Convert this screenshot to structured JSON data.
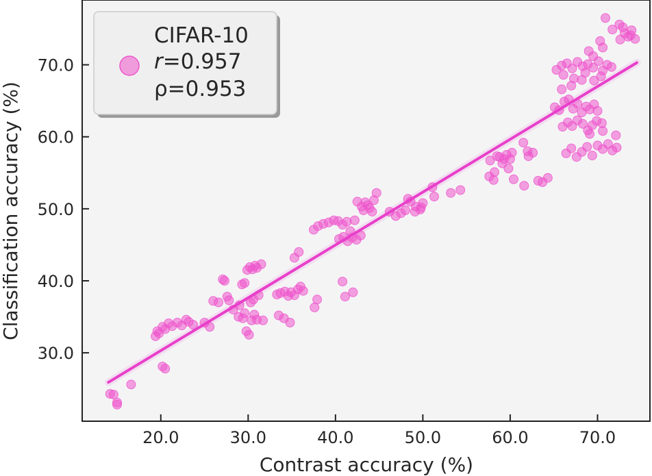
{
  "chart_data": {
    "type": "scatter",
    "xlabel": "Contrast accuracy (%)",
    "ylabel": "Classification accuracy (%)",
    "xlim": [
      11.0,
      76.0
    ],
    "ylim": [
      20.5,
      79.0
    ],
    "xticks": [
      20,
      30,
      40,
      50,
      60,
      70
    ],
    "yticks": [
      30,
      40,
      50,
      60,
      70
    ],
    "xtick_labels": [
      "20.0",
      "30.0",
      "40.0",
      "50.0",
      "60.0",
      "70.0"
    ],
    "ytick_labels": [
      "30.0",
      "40.0",
      "50.0",
      "60.0",
      "70.0"
    ],
    "grid": false,
    "legend_position": "top-left",
    "point_color": "#ee55cc",
    "fit_line_color": "#e83fca",
    "fit_line": {
      "x": [
        14.0,
        74.5
      ],
      "y": [
        25.9,
        70.3
      ]
    },
    "legend": {
      "title": "CIFAR-10",
      "r_symbol": "r",
      "r_value": "=0.957",
      "rho_text": "ρ=0.953"
    },
    "series": [
      {
        "x": [
          14.2,
          14.6,
          15.0,
          15.0,
          16.6,
          19.4,
          19.6,
          19.8,
          20.2,
          20.5,
          20.9,
          21.3,
          21.9,
          22.4,
          22.9,
          23.2,
          23.7,
          25.0,
          25.6,
          20.2,
          20.5,
          26.0,
          26.6,
          27.1,
          27.3,
          27.6,
          27.8,
          28.3,
          28.9,
          29.3,
          29.6,
          29.9,
          30.2,
          30.5,
          30.8,
          31.0,
          31.5,
          29.4,
          29.8,
          30.1,
          30.4,
          30.7,
          31.0,
          31.7,
          29.0,
          31.2,
          29.6,
          30.3,
          30.6,
          33.3,
          33.7,
          34.2,
          34.6,
          34.9,
          35.3,
          35.7,
          36.0,
          36.3,
          33.5,
          34.1,
          34.8,
          35.3,
          35.8,
          37.6,
          37.9,
          37.5,
          38.0,
          38.6,
          39.2,
          39.8,
          40.3,
          40.8,
          41.3,
          41.7,
          42.2,
          40.4,
          40.9,
          41.4,
          41.9,
          42.4,
          42.9,
          40.8,
          41.1,
          42.0,
          42.5,
          43.0,
          43.4,
          43.9,
          44.4,
          44.7,
          43.2,
          43.7,
          44.2,
          46.2,
          46.9,
          47.5,
          48.0,
          48.6,
          49.2,
          49.7,
          50.0,
          48.3,
          49.1,
          49.8,
          51.3,
          51.1,
          53.2,
          54.3,
          57.7,
          58.2,
          58.8,
          59.3,
          59.8,
          60.2,
          58.5,
          59.1,
          59.6,
          60.4,
          61.6,
          62.1,
          62.6,
          57.6,
          58.1,
          60.0,
          61.5,
          63.2,
          63.7,
          64.3,
          62.0,
          65.1,
          65.6,
          66.2,
          66.7,
          67.2,
          67.7,
          68.2,
          68.7,
          69.1,
          69.6,
          70.0,
          66.0,
          66.6,
          67.1,
          67.7,
          68.3,
          68.9,
          69.4,
          69.9,
          70.5,
          65.3,
          65.9,
          66.5,
          67.1,
          67.7,
          68.3,
          68.9,
          69.5,
          70.1,
          70.6,
          71.1,
          71.6,
          66.1,
          67.3,
          68.6,
          69.6,
          70.4,
          66.4,
          67.0,
          67.6,
          68.2,
          68.8,
          69.4,
          70.0,
          70.6,
          71.2,
          71.7,
          72.2,
          69.1,
          70.6,
          72.1,
          72.6,
          73.1,
          73.5,
          73.9,
          74.3,
          72.9,
          73.8,
          69.0,
          70.3,
          71.7,
          70.9,
          72.5,
          65.9,
          67.0,
          68.2,
          69.5,
          70.6
        ],
        "y": [
          24.3,
          24.2,
          23.1,
          22.8,
          25.6,
          32.3,
          33.0,
          32.7,
          33.6,
          33.3,
          34.1,
          33.7,
          34.2,
          33.8,
          34.6,
          34.3,
          33.9,
          34.2,
          33.6,
          28.1,
          27.8,
          37.2,
          37.0,
          40.2,
          40.0,
          37.8,
          37.3,
          36.0,
          35.0,
          39.5,
          39.7,
          41.5,
          41.9,
          41.6,
          42.1,
          41.8,
          42.3,
          34.8,
          33.0,
          32.5,
          34.5,
          35.3,
          34.6,
          34.5,
          36.6,
          38.0,
          35.5,
          37.0,
          37.4,
          38.1,
          38.3,
          38.5,
          37.9,
          38.4,
          38.0,
          38.8,
          39.2,
          38.6,
          35.2,
          34.8,
          34.2,
          43.2,
          44.0,
          36.3,
          37.4,
          47.1,
          47.6,
          47.9,
          48.1,
          48.4,
          48.3,
          47.8,
          48.2,
          46.9,
          48.4,
          45.8,
          46.1,
          45.5,
          46.0,
          45.7,
          46.3,
          39.9,
          37.8,
          38.4,
          51.0,
          50.3,
          50.9,
          50.1,
          51.2,
          52.2,
          49.8,
          50.5,
          49.6,
          49.6,
          49.0,
          49.4,
          49.8,
          51.0,
          50.3,
          49.9,
          50.8,
          51.4,
          49.6,
          50.2,
          51.7,
          53.0,
          52.2,
          52.6,
          56.7,
          55.1,
          57.2,
          56.9,
          55.6,
          57.8,
          57.3,
          56.3,
          57.5,
          54.1,
          53.2,
          57.3,
          57.8,
          54.5,
          54.0,
          56.9,
          59.2,
          53.9,
          53.7,
          54.3,
          58.0,
          64.1,
          63.7,
          64.9,
          65.2,
          63.9,
          64.6,
          63.4,
          64.2,
          63.8,
          64.5,
          63.6,
          61.4,
          62.0,
          61.5,
          62.3,
          61.8,
          60.9,
          61.6,
          62.2,
          61.9,
          69.3,
          69.9,
          70.2,
          69.5,
          70.4,
          69.8,
          70.1,
          69.6,
          70.5,
          69.2,
          70.0,
          69.7,
          68.6,
          68.1,
          68.9,
          67.8,
          68.4,
          57.7,
          58.4,
          57.2,
          57.9,
          58.6,
          57.4,
          58.8,
          58.3,
          59.0,
          58.1,
          58.5,
          60.4,
          60.8,
          60.2,
          73.5,
          74.4,
          73.9,
          74.8,
          73.6,
          75.2,
          74.1,
          71.9,
          73.3,
          74.9,
          76.5,
          75.6,
          66.6,
          67.1,
          67.9,
          71.2,
          72.4
        ]
      }
    ]
  }
}
